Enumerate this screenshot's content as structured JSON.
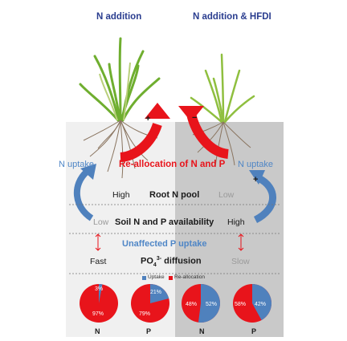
{
  "titles": {
    "left": "N addition",
    "right": "N addition & HFDI"
  },
  "labels": {
    "n_uptake_left": "N uptake",
    "reallocation": "Re-allocation of N and P",
    "n_uptake_right": "N uptake",
    "high_left": "High",
    "root_n_pool": "Root N pool",
    "low_right": "Low",
    "low_left": "Low",
    "soil_np": "Soil N and P availability",
    "high_right": "High",
    "unaffected": "Unaffected P uptake",
    "fast": "Fast",
    "po4_diffusion": "PO4 3- diffusion",
    "slow": "Slow"
  },
  "arrow_signs": {
    "left_plus": "+",
    "right_minus": "−",
    "blue_plus": "+"
  },
  "legend": {
    "uptake": "Uptake",
    "reallocation": "Re-allocation"
  },
  "colors": {
    "uptake": "#4f81bd",
    "reallocation": "#e8141b",
    "title": "#2a3d8f",
    "blue_text": "#4f86c6"
  },
  "chart_data": {
    "type": "pie",
    "series_names": [
      "Uptake",
      "Re-allocation"
    ],
    "pies": [
      {
        "label": "N",
        "group": "N addition",
        "uptake": 3,
        "reallocation": 97
      },
      {
        "label": "P",
        "group": "N addition",
        "uptake": 21,
        "reallocation": 79
      },
      {
        "label": "N",
        "group": "N addition & HFDI",
        "uptake": 52,
        "reallocation": 48
      },
      {
        "label": "P",
        "group": "N addition & HFDI",
        "uptake": 42,
        "reallocation": 58
      }
    ],
    "slice_labels": [
      {
        "uptake": "3%",
        "reallocation": "97%"
      },
      {
        "uptake": "21%",
        "reallocation": "79%"
      },
      {
        "uptake": "52%",
        "reallocation": "48%"
      },
      {
        "uptake": "42%",
        "reallocation": "58%"
      }
    ]
  }
}
